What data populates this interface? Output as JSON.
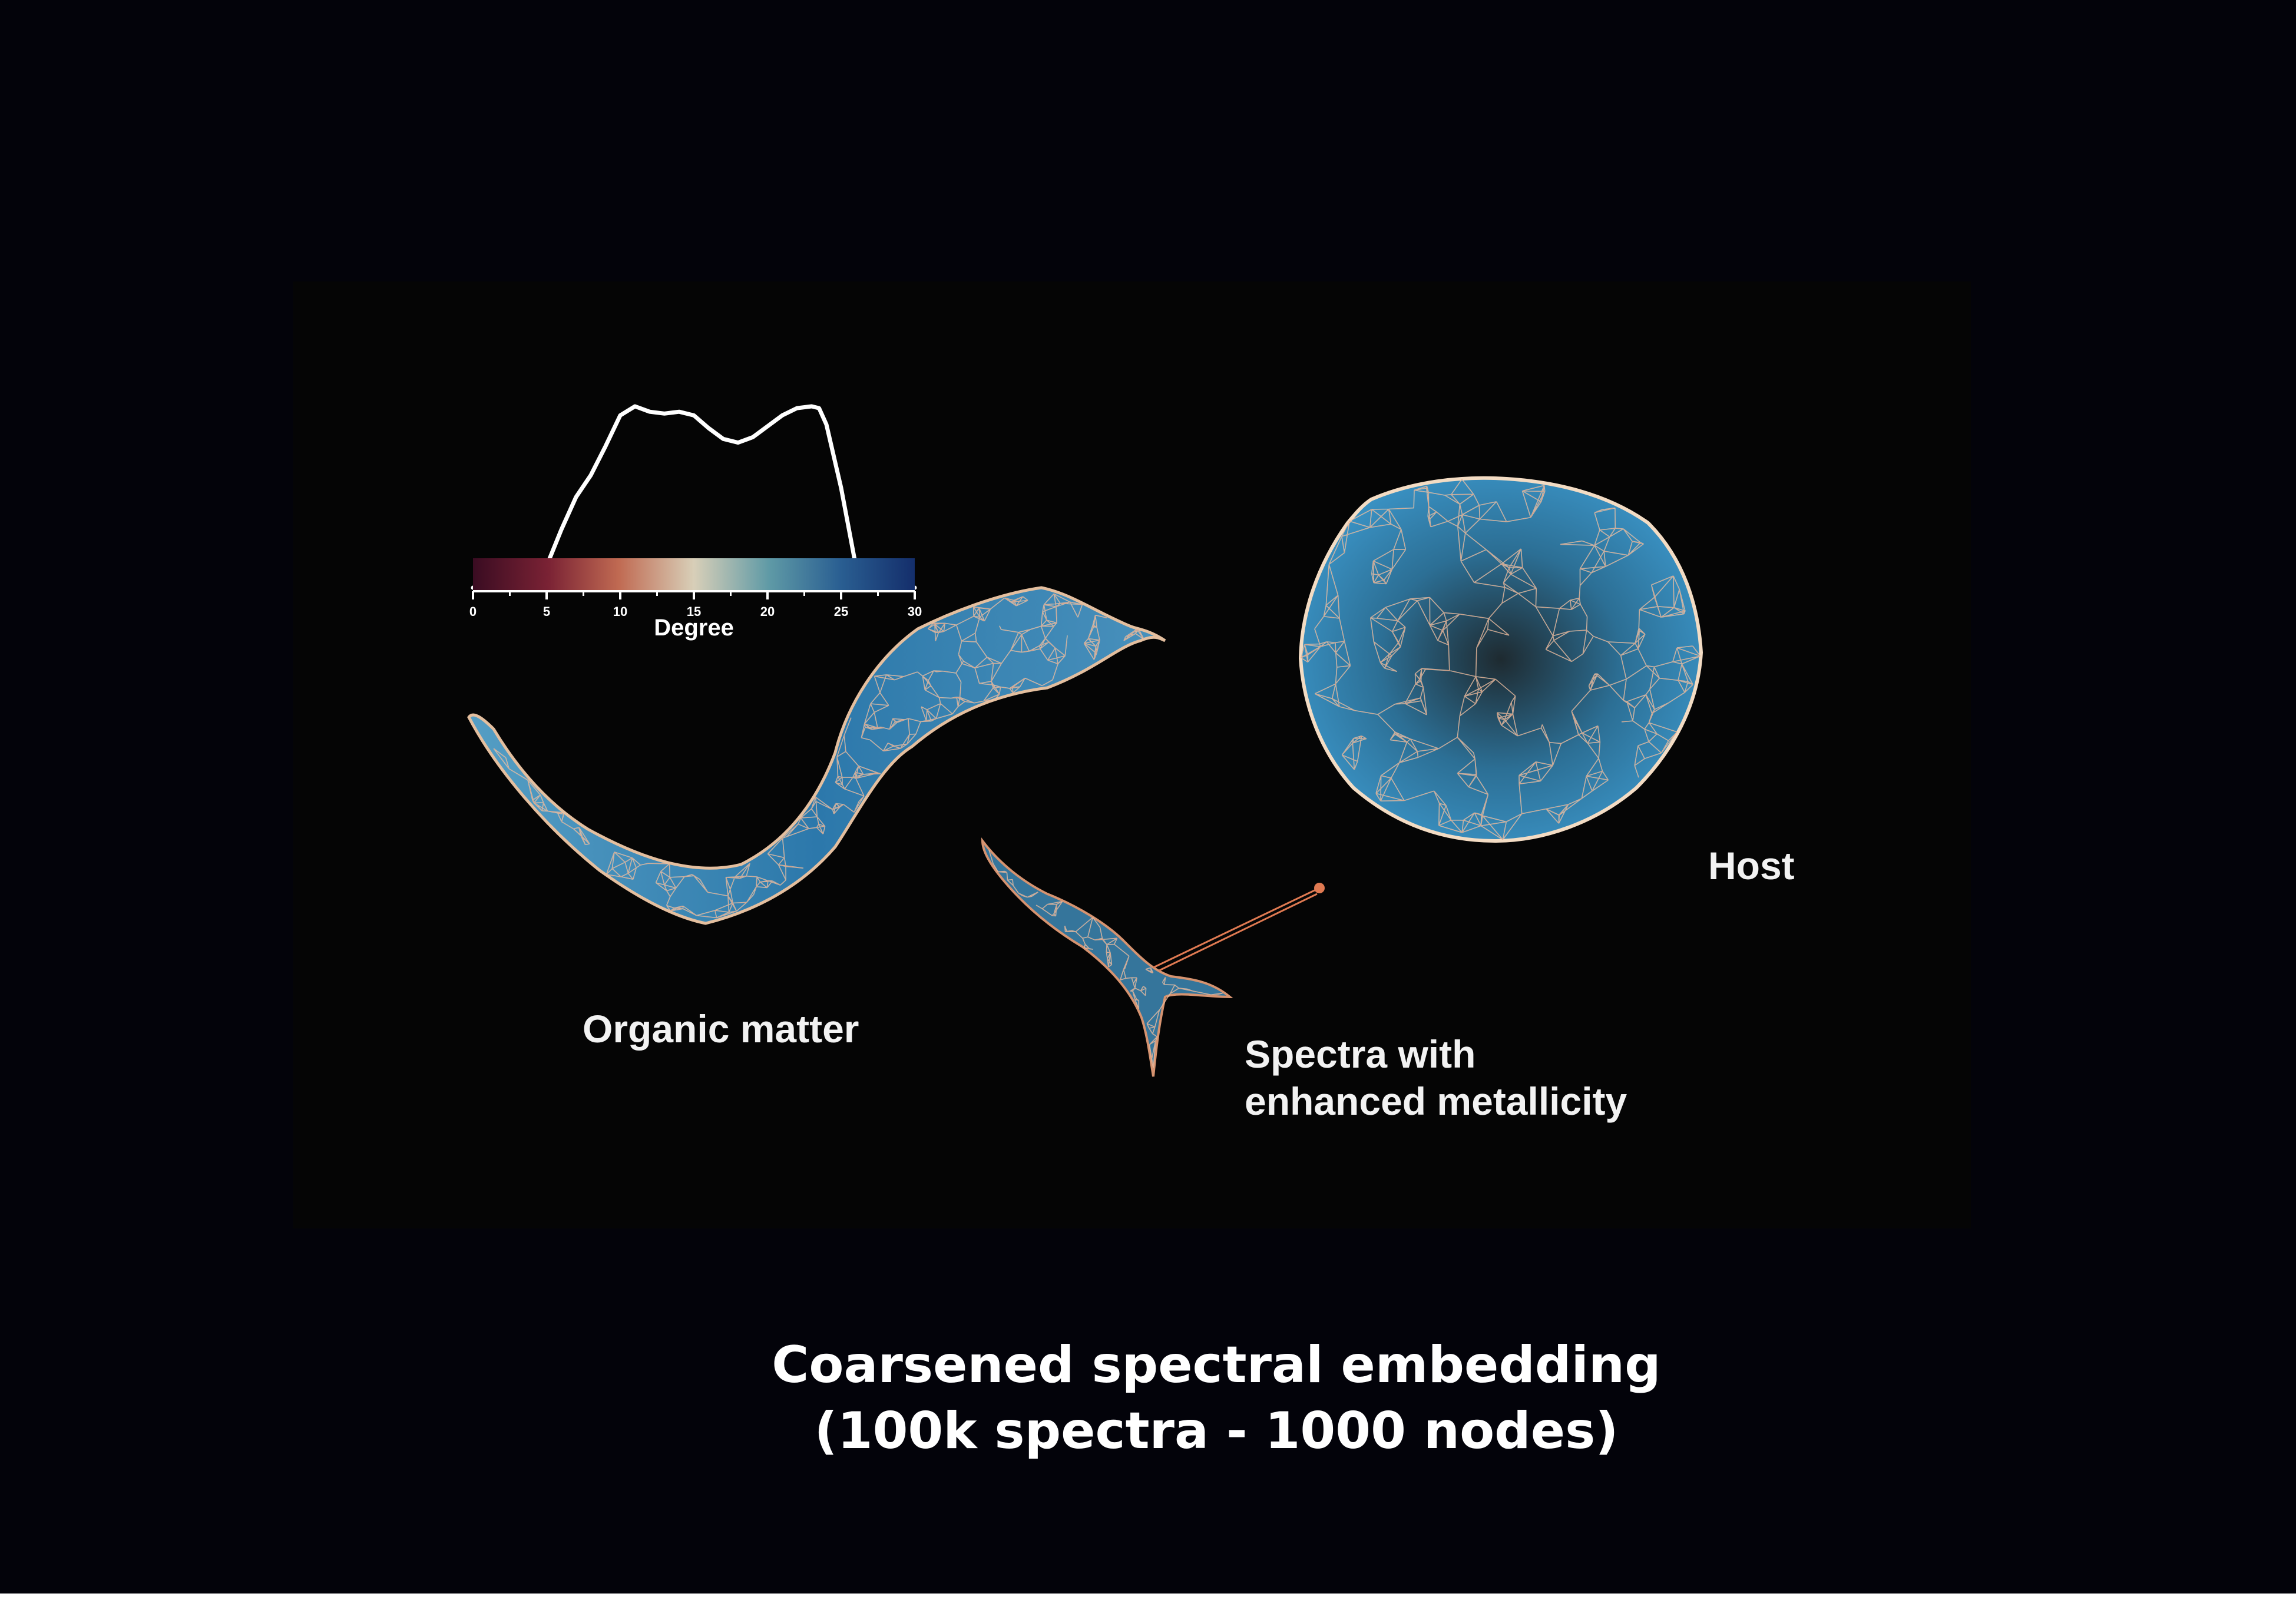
{
  "colors": {
    "background": "#03030a",
    "panel": "#050505",
    "degree_low": "#5a0f2a",
    "degree_mid": "#d8cfb8",
    "degree_high": "#1c4c86",
    "edge_light": "#f3dcc4",
    "edge_warm": "#e07a52",
    "node_blue": "#3a8fbf"
  },
  "legend": {
    "axis_label": "Degree",
    "ticks": [
      "0",
      "5",
      "10",
      "15",
      "20",
      "25",
      "30"
    ],
    "range": [
      0,
      30
    ],
    "distribution_curve": {
      "x": [
        0,
        2,
        4,
        5,
        6,
        7,
        8,
        9,
        10,
        11,
        12,
        13,
        14,
        15,
        16,
        17,
        18,
        19,
        20,
        21,
        22,
        23,
        23.5,
        24,
        25,
        26,
        27,
        28,
        30
      ],
      "y": [
        0.0,
        0.01,
        0.05,
        0.12,
        0.32,
        0.5,
        0.62,
        0.78,
        0.95,
        1.0,
        0.97,
        0.96,
        0.97,
        0.95,
        0.88,
        0.82,
        0.8,
        0.83,
        0.89,
        0.95,
        0.99,
        1.0,
        0.99,
        0.9,
        0.55,
        0.12,
        0.02,
        0.0,
        0.0
      ]
    }
  },
  "clusters": {
    "organic": {
      "label": "Organic matter"
    },
    "metallicity": {
      "label_line1": "Spectra with",
      "label_line2": "enhanced metallicity"
    },
    "host": {
      "label": "Host"
    }
  },
  "caption": {
    "line1": "Coarsened spectral embedding",
    "line2": "(100k spectra - 1000 nodes)"
  }
}
